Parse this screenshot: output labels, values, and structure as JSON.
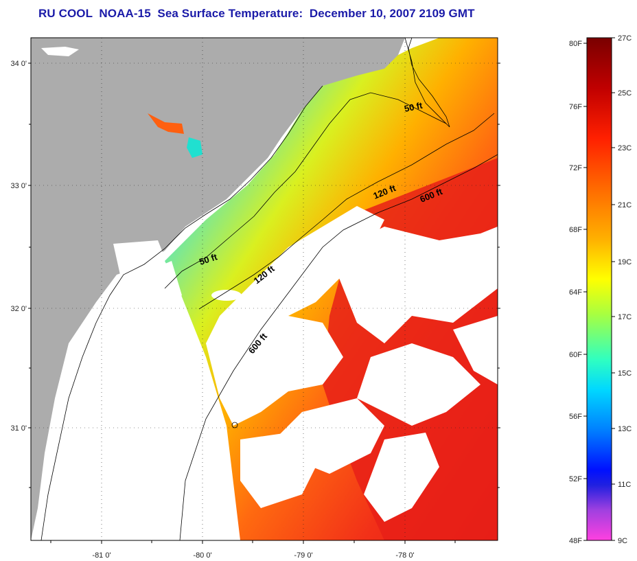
{
  "title": "RU COOL  NOAA-15  Sea Surface Temperature:  December 10, 2007 2109 GMT",
  "map": {
    "lon_ticks": [
      "-81 0'",
      "-80 0'",
      "-79 0'",
      "-78 0'"
    ],
    "lat_ticks": [
      "34 0'",
      "33 0'",
      "32 0'",
      "31 0'"
    ],
    "contours": [
      {
        "label": "50 ft"
      },
      {
        "label": "120 ft"
      },
      {
        "label": "600 ft"
      },
      {
        "label": "50 ft"
      },
      {
        "label": "120 ft"
      },
      {
        "label": "600 ft"
      }
    ],
    "colors": {
      "land": "#acacac",
      "cloud": "#ffffff",
      "coastline": "#000000"
    }
  },
  "colorbar": {
    "fahrenheit": [
      "80F",
      "76F",
      "72F",
      "68F",
      "64F",
      "60F",
      "56F",
      "52F",
      "48F"
    ],
    "celsius": [
      "27C",
      "25C",
      "23C",
      "21C",
      "19C",
      "17C",
      "15C",
      "13C",
      "11C",
      "9C"
    ]
  }
}
